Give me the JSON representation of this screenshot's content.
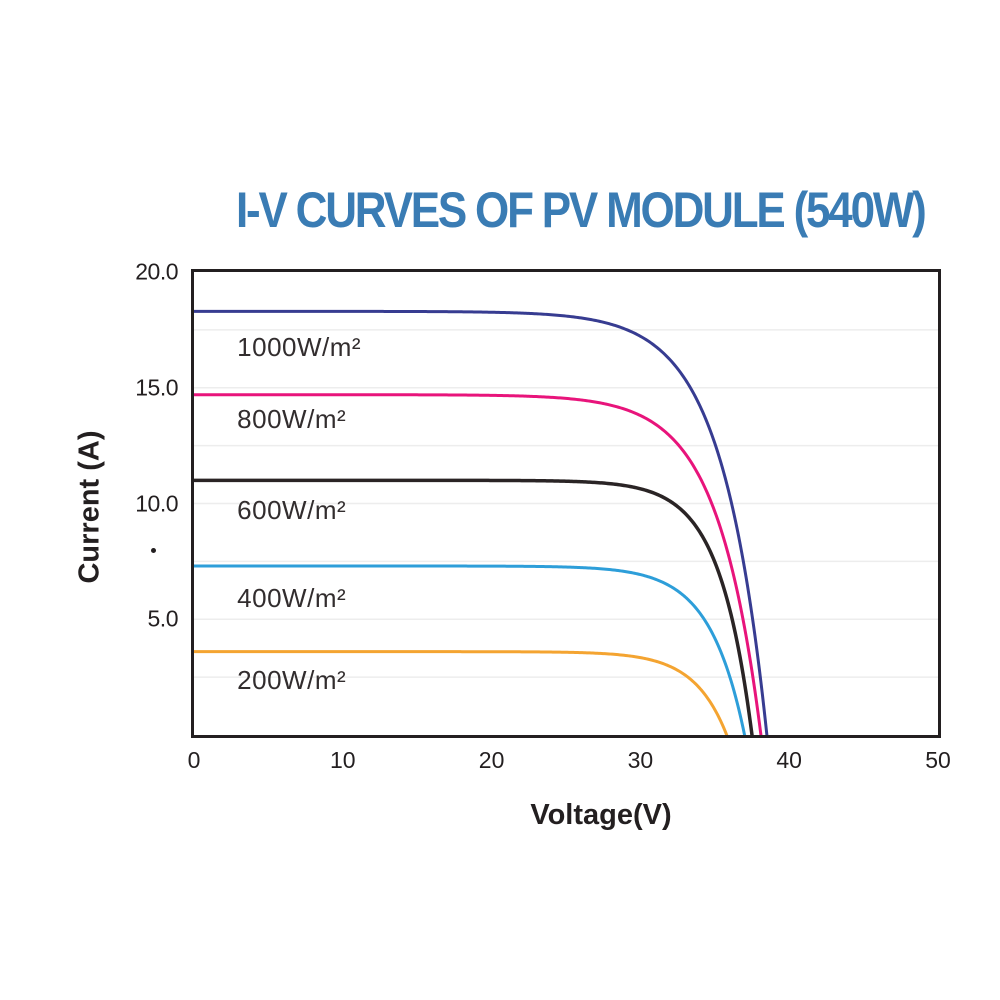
{
  "chart_data": {
    "type": "line",
    "title": "I-V CURVES OF PV MODULE (540W)",
    "title_color": "#3a7cb4",
    "xlabel": "Voltage(V)",
    "ylabel": "Current (A)",
    "xlim": [
      0,
      50
    ],
    "ylim": [
      0,
      20
    ],
    "x_ticks": [
      {
        "value": 0,
        "label": "0"
      },
      {
        "value": 10,
        "label": "10"
      },
      {
        "value": 20,
        "label": "20"
      },
      {
        "value": 30,
        "label": "30"
      },
      {
        "value": 40,
        "label": "40"
      },
      {
        "value": 50,
        "label": "50"
      }
    ],
    "y_ticks": [
      {
        "value": 20,
        "label": "20.0"
      },
      {
        "value": 15,
        "label": "15.0"
      },
      {
        "value": 10,
        "label": "10.0"
      },
      {
        "value": 5,
        "label": "5.0"
      }
    ],
    "grid": {
      "horizontal_interval": 2.5,
      "vertical": false,
      "color": "#ededed",
      "axis_color": "#231f20"
    },
    "legend_position": "labels-on-plot",
    "series": [
      {
        "name": "1000W/m²",
        "color": "#373c91",
        "stroke_width": 3,
        "isc_a": 18.3,
        "voc_v": 38.5,
        "knee_softness_v": 3.0,
        "points": [
          [
            0,
            18.3
          ],
          [
            10,
            18.3
          ],
          [
            20,
            18.3
          ],
          [
            25,
            18.1
          ],
          [
            30,
            17.2
          ],
          [
            33,
            15.4
          ],
          [
            35,
            12.6
          ],
          [
            36.5,
            8.9
          ],
          [
            37.5,
            5.2
          ],
          [
            38.5,
            0
          ]
        ],
        "label": {
          "v": 2.7,
          "i": 16.9
        }
      },
      {
        "name": "800W/m²",
        "color": "#e8147b",
        "stroke_width": 3,
        "isc_a": 14.7,
        "voc_v": 38.1,
        "knee_softness_v": 2.9,
        "points": [
          [
            0,
            14.7
          ],
          [
            10,
            14.7
          ],
          [
            20,
            14.7
          ],
          [
            25,
            14.6
          ],
          [
            30,
            13.8
          ],
          [
            33,
            12.2
          ],
          [
            35,
            9.7
          ],
          [
            36.5,
            6.2
          ],
          [
            37.5,
            2.8
          ],
          [
            38.1,
            0
          ]
        ],
        "label": {
          "v": 2.7,
          "i": 13.8
        }
      },
      {
        "name": "600W/m²",
        "color": "#2a2425",
        "stroke_width": 3.5,
        "isc_a": 11.0,
        "voc_v": 37.5,
        "knee_softness_v": 2.2,
        "points": [
          [
            0,
            11.0
          ],
          [
            10,
            11.0
          ],
          [
            20,
            11.0
          ],
          [
            25,
            11.0
          ],
          [
            30,
            10.6
          ],
          [
            33,
            9.6
          ],
          [
            35,
            7.5
          ],
          [
            36.5,
            4.0
          ],
          [
            37.5,
            0
          ]
        ],
        "label": {
          "v": 2.7,
          "i": 9.85
        }
      },
      {
        "name": "400W/m²",
        "color": "#2d9ed9",
        "stroke_width": 3,
        "isc_a": 7.3,
        "voc_v": 37.0,
        "knee_softness_v": 2.35,
        "points": [
          [
            0,
            7.3
          ],
          [
            10,
            7.3
          ],
          [
            20,
            7.3
          ],
          [
            25,
            7.3
          ],
          [
            30,
            6.9
          ],
          [
            33,
            6.0
          ],
          [
            35,
            4.2
          ],
          [
            36,
            2.5
          ],
          [
            37,
            0
          ]
        ],
        "label": {
          "v": 2.7,
          "i": 6.05
        }
      },
      {
        "name": "200W/m²",
        "color": "#f4a431",
        "stroke_width": 3,
        "isc_a": 3.6,
        "voc_v": 35.8,
        "knee_softness_v": 2.2,
        "points": [
          [
            0,
            3.6
          ],
          [
            10,
            3.6
          ],
          [
            20,
            3.6
          ],
          [
            28,
            3.5
          ],
          [
            31,
            3.2
          ],
          [
            33,
            2.6
          ],
          [
            34.5,
            1.6
          ],
          [
            35.8,
            0
          ]
        ],
        "label": {
          "v": 2.7,
          "i": 2.5
        }
      }
    ],
    "y_axis_stray_mark": "."
  }
}
